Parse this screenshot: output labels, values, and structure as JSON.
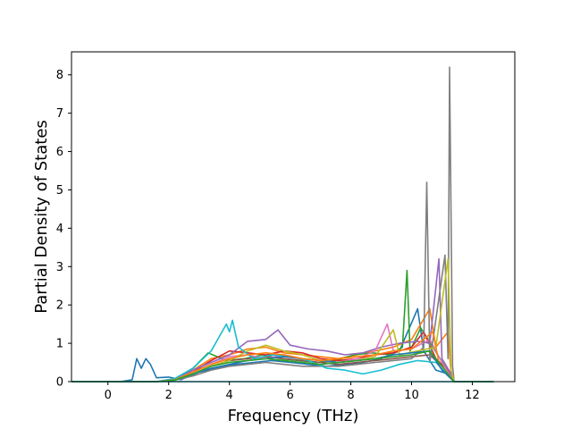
{
  "chart_data": {
    "type": "line",
    "title": "",
    "xlabel": "Frequency (THz)",
    "ylabel": "Partial Density of States",
    "xlim": [
      -1.2,
      13.4
    ],
    "ylim": [
      0,
      8.6
    ],
    "x_ticks": [
      0,
      2,
      4,
      6,
      8,
      10,
      12
    ],
    "y_ticks": [
      0,
      1,
      2,
      3,
      4,
      5,
      6,
      7,
      8
    ],
    "grid": false,
    "legend": "none",
    "series": [
      {
        "color": "#1f77b4",
        "points": [
          [
            -1.2,
            0
          ],
          [
            0.4,
            0
          ],
          [
            0.8,
            0.05
          ],
          [
            0.95,
            0.6
          ],
          [
            1.1,
            0.35
          ],
          [
            1.25,
            0.6
          ],
          [
            1.4,
            0.45
          ],
          [
            1.6,
            0.1
          ],
          [
            2,
            0.12
          ],
          [
            2.4,
            0.05
          ],
          [
            3,
            0.25
          ],
          [
            3.6,
            0.35
          ],
          [
            4.2,
            0.45
          ],
          [
            4.8,
            0.5
          ],
          [
            5.4,
            0.55
          ],
          [
            6,
            0.5
          ],
          [
            6.6,
            0.45
          ],
          [
            7.2,
            0.4
          ],
          [
            7.8,
            0.45
          ],
          [
            8.4,
            0.5
          ],
          [
            9,
            0.6
          ],
          [
            9.6,
            0.8
          ],
          [
            10.2,
            1.9
          ],
          [
            10.4,
            0.8
          ],
          [
            10.8,
            0.3
          ],
          [
            11.2,
            0.2
          ],
          [
            11.4,
            0
          ],
          [
            12.7,
            0
          ]
        ]
      },
      {
        "color": "#ff7f0e",
        "points": [
          [
            -1.2,
            0
          ],
          [
            1.6,
            0
          ],
          [
            2.2,
            0.08
          ],
          [
            2.8,
            0.3
          ],
          [
            3.4,
            0.6
          ],
          [
            4,
            0.7
          ],
          [
            4.6,
            0.85
          ],
          [
            5.2,
            0.9
          ],
          [
            5.8,
            0.75
          ],
          [
            6.4,
            0.7
          ],
          [
            7,
            0.65
          ],
          [
            7.6,
            0.6
          ],
          [
            8.2,
            0.7
          ],
          [
            8.8,
            0.8
          ],
          [
            9.4,
            0.9
          ],
          [
            10,
            1.1
          ],
          [
            10.6,
            1.9
          ],
          [
            10.8,
            0.9
          ],
          [
            11.2,
            1.3
          ],
          [
            11.3,
            0.2
          ],
          [
            11.4,
            0
          ],
          [
            12.7,
            0
          ]
        ]
      },
      {
        "color": "#2ca02c",
        "points": [
          [
            -1.2,
            0
          ],
          [
            1.6,
            0
          ],
          [
            2.2,
            0.05
          ],
          [
            2.8,
            0.35
          ],
          [
            3.3,
            0.75
          ],
          [
            3.9,
            0.55
          ],
          [
            4.5,
            0.6
          ],
          [
            5.1,
            0.7
          ],
          [
            5.7,
            0.6
          ],
          [
            6.3,
            0.55
          ],
          [
            6.9,
            0.5
          ],
          [
            7.5,
            0.55
          ],
          [
            8.1,
            0.7
          ],
          [
            8.7,
            0.75
          ],
          [
            9.3,
            0.7
          ],
          [
            9.7,
            0.9
          ],
          [
            9.85,
            2.9
          ],
          [
            9.95,
            0.8
          ],
          [
            10.3,
            1.4
          ],
          [
            10.7,
            0.9
          ],
          [
            11.1,
            0.4
          ],
          [
            11.4,
            0
          ],
          [
            12.7,
            0
          ]
        ]
      },
      {
        "color": "#d62728",
        "points": [
          [
            -1.2,
            0
          ],
          [
            1.6,
            0
          ],
          [
            2.2,
            0.06
          ],
          [
            2.8,
            0.25
          ],
          [
            3.4,
            0.55
          ],
          [
            4,
            0.8
          ],
          [
            4.6,
            0.75
          ],
          [
            5.2,
            0.7
          ],
          [
            5.8,
            0.8
          ],
          [
            6.4,
            0.75
          ],
          [
            7,
            0.6
          ],
          [
            7.6,
            0.55
          ],
          [
            8.2,
            0.6
          ],
          [
            8.8,
            0.7
          ],
          [
            9.4,
            0.75
          ],
          [
            10,
            0.9
          ],
          [
            10.4,
            1.3
          ],
          [
            10.8,
            0.6
          ],
          [
            11.2,
            0.3
          ],
          [
            11.4,
            0
          ],
          [
            12.7,
            0
          ]
        ]
      },
      {
        "color": "#9467bd",
        "points": [
          [
            -1.2,
            0
          ],
          [
            1.6,
            0
          ],
          [
            2.2,
            0.05
          ],
          [
            2.8,
            0.3
          ],
          [
            3.4,
            0.5
          ],
          [
            4,
            0.7
          ],
          [
            4.6,
            1.05
          ],
          [
            5.2,
            1.1
          ],
          [
            5.6,
            1.35
          ],
          [
            6,
            0.95
          ],
          [
            6.6,
            0.85
          ],
          [
            7.2,
            0.8
          ],
          [
            7.8,
            0.7
          ],
          [
            8.4,
            0.75
          ],
          [
            9,
            0.9
          ],
          [
            9.6,
            1
          ],
          [
            10.2,
            1.05
          ],
          [
            10.6,
            1
          ],
          [
            10.9,
            3.2
          ],
          [
            11,
            0.6
          ],
          [
            11.3,
            0.2
          ],
          [
            11.4,
            0
          ],
          [
            12.7,
            0
          ]
        ]
      },
      {
        "color": "#8c564b",
        "points": [
          [
            -1.2,
            0
          ],
          [
            1.6,
            0
          ],
          [
            2.2,
            0.05
          ],
          [
            2.8,
            0.2
          ],
          [
            3.4,
            0.4
          ],
          [
            4,
            0.55
          ],
          [
            4.6,
            0.6
          ],
          [
            5.2,
            0.65
          ],
          [
            5.8,
            0.6
          ],
          [
            6.4,
            0.55
          ],
          [
            7,
            0.5
          ],
          [
            7.6,
            0.45
          ],
          [
            8.2,
            0.5
          ],
          [
            8.8,
            0.55
          ],
          [
            9.4,
            0.6
          ],
          [
            10,
            0.65
          ],
          [
            10.6,
            0.7
          ],
          [
            11,
            0.4
          ],
          [
            11.4,
            0
          ],
          [
            12.7,
            0
          ]
        ]
      },
      {
        "color": "#e377c2",
        "points": [
          [
            -1.2,
            0
          ],
          [
            1.6,
            0
          ],
          [
            2.2,
            0.05
          ],
          [
            2.8,
            0.25
          ],
          [
            3.4,
            0.45
          ],
          [
            4,
            0.65
          ],
          [
            4.6,
            0.7
          ],
          [
            5.2,
            0.6
          ],
          [
            5.8,
            0.7
          ],
          [
            6.4,
            0.6
          ],
          [
            7,
            0.55
          ],
          [
            7.6,
            0.5
          ],
          [
            8.2,
            0.6
          ],
          [
            8.8,
            0.8
          ],
          [
            9.2,
            1.5
          ],
          [
            9.4,
            0.8
          ],
          [
            10,
            0.85
          ],
          [
            10.6,
            1.1
          ],
          [
            11,
            0.5
          ],
          [
            11.4,
            0
          ],
          [
            12.7,
            0
          ]
        ]
      },
      {
        "color": "#7f7f7f",
        "points": [
          [
            -1.2,
            0
          ],
          [
            1.6,
            0
          ],
          [
            2.2,
            0.04
          ],
          [
            2.8,
            0.15
          ],
          [
            3.4,
            0.3
          ],
          [
            4,
            0.4
          ],
          [
            4.6,
            0.45
          ],
          [
            5.2,
            0.5
          ],
          [
            5.8,
            0.45
          ],
          [
            6.4,
            0.4
          ],
          [
            7,
            0.4
          ],
          [
            7.6,
            0.4
          ],
          [
            8.2,
            0.45
          ],
          [
            8.8,
            0.5
          ],
          [
            9.4,
            0.55
          ],
          [
            10,
            0.6
          ],
          [
            10.4,
            0.9
          ],
          [
            10.5,
            5.2
          ],
          [
            10.6,
            0.5
          ],
          [
            11.1,
            3.3
          ],
          [
            11.2,
            0.6
          ],
          [
            11.25,
            8.2
          ],
          [
            11.35,
            0.4
          ],
          [
            11.4,
            0
          ],
          [
            12.7,
            0
          ]
        ]
      },
      {
        "color": "#bcbd22",
        "points": [
          [
            -1.2,
            0
          ],
          [
            1.6,
            0
          ],
          [
            2.2,
            0.05
          ],
          [
            2.8,
            0.2
          ],
          [
            3.4,
            0.4
          ],
          [
            4,
            0.55
          ],
          [
            4.6,
            0.8
          ],
          [
            5.2,
            0.95
          ],
          [
            5.8,
            0.8
          ],
          [
            6.4,
            0.7
          ],
          [
            7,
            0.55
          ],
          [
            7.6,
            0.5
          ],
          [
            8.2,
            0.55
          ],
          [
            8.8,
            0.65
          ],
          [
            9.4,
            1.35
          ],
          [
            9.6,
            0.7
          ],
          [
            10.2,
            0.8
          ],
          [
            10.8,
            0.9
          ],
          [
            11.2,
            3.2
          ],
          [
            11.3,
            0.3
          ],
          [
            11.4,
            0
          ],
          [
            12.7,
            0
          ]
        ]
      },
      {
        "color": "#17becf",
        "points": [
          [
            -1.2,
            0
          ],
          [
            1.6,
            0
          ],
          [
            2.2,
            0.08
          ],
          [
            2.8,
            0.35
          ],
          [
            3.4,
            0.8
          ],
          [
            3.9,
            1.5
          ],
          [
            4,
            1.3
          ],
          [
            4.1,
            1.6
          ],
          [
            4.3,
            0.9
          ],
          [
            4.8,
            0.6
          ],
          [
            5.4,
            0.7
          ],
          [
            6,
            0.65
          ],
          [
            6.6,
            0.55
          ],
          [
            7.2,
            0.35
          ],
          [
            7.8,
            0.3
          ],
          [
            8.4,
            0.2
          ],
          [
            9,
            0.3
          ],
          [
            9.6,
            0.45
          ],
          [
            10.2,
            0.55
          ],
          [
            10.8,
            0.5
          ],
          [
            11.4,
            0
          ],
          [
            12.7,
            0
          ]
        ]
      },
      {
        "color": "#1f77b4",
        "points": [
          [
            -1.2,
            0
          ],
          [
            1.6,
            0
          ],
          [
            2.2,
            0.04
          ],
          [
            2.8,
            0.2
          ],
          [
            3.4,
            0.35
          ],
          [
            4,
            0.45
          ],
          [
            4.6,
            0.55
          ],
          [
            5.2,
            0.6
          ],
          [
            5.8,
            0.65
          ],
          [
            6.4,
            0.6
          ],
          [
            7,
            0.55
          ],
          [
            7.6,
            0.5
          ],
          [
            8.2,
            0.55
          ],
          [
            8.8,
            0.6
          ],
          [
            9.4,
            0.7
          ],
          [
            10,
            0.75
          ],
          [
            10.6,
            0.8
          ],
          [
            11,
            0.3
          ],
          [
            11.4,
            0
          ],
          [
            12.7,
            0
          ]
        ]
      },
      {
        "color": "#ff7f0e",
        "points": [
          [
            -1.2,
            0
          ],
          [
            1.6,
            0
          ],
          [
            2.2,
            0.05
          ],
          [
            2.8,
            0.25
          ],
          [
            3.4,
            0.45
          ],
          [
            4,
            0.6
          ],
          [
            4.6,
            0.7
          ],
          [
            5.2,
            0.75
          ],
          [
            5.8,
            0.7
          ],
          [
            6.4,
            0.6
          ],
          [
            7,
            0.55
          ],
          [
            7.6,
            0.6
          ],
          [
            8.2,
            0.65
          ],
          [
            8.8,
            0.7
          ],
          [
            9.4,
            0.8
          ],
          [
            10,
            0.85
          ],
          [
            10.7,
            1.3
          ],
          [
            10.9,
            0.5
          ],
          [
            11.4,
            0
          ],
          [
            12.7,
            0
          ]
        ]
      },
      {
        "color": "#2ca02c",
        "points": [
          [
            -1.2,
            0
          ],
          [
            1.6,
            0
          ],
          [
            2.2,
            0.04
          ],
          [
            2.8,
            0.2
          ],
          [
            3.4,
            0.4
          ],
          [
            4,
            0.5
          ],
          [
            4.6,
            0.55
          ],
          [
            5.2,
            0.6
          ],
          [
            5.8,
            0.55
          ],
          [
            6.4,
            0.5
          ],
          [
            7,
            0.45
          ],
          [
            7.6,
            0.5
          ],
          [
            8.2,
            0.55
          ],
          [
            8.8,
            0.6
          ],
          [
            9.4,
            0.65
          ],
          [
            10,
            0.7
          ],
          [
            10.6,
            0.8
          ],
          [
            11,
            0.4
          ],
          [
            11.4,
            0
          ],
          [
            12.7,
            0
          ]
        ]
      },
      {
        "color": "#17becf",
        "points": [
          [
            -1.2,
            0
          ],
          [
            12.7,
            0
          ]
        ]
      }
    ]
  }
}
